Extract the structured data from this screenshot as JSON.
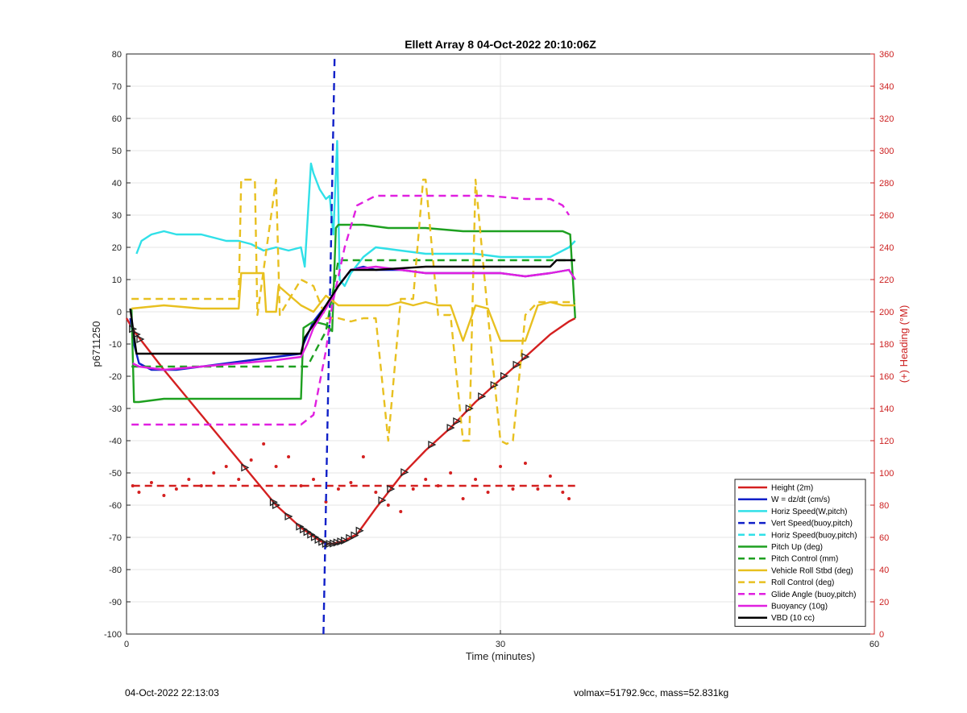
{
  "chart_data": {
    "type": "line",
    "title": "Ellett Array 8 04-Oct-2022 20:10:06Z",
    "xlabel": "Time (minutes)",
    "ylabel_left": "p6711250",
    "ylabel_right": "(+) Heading (°M)",
    "xlim": [
      0,
      60
    ],
    "ylim_left": [
      -100,
      80
    ],
    "ylim_right": [
      0,
      360
    ],
    "xticks": [
      "0",
      "30",
      "60"
    ],
    "yticks_left": [
      "80",
      "70",
      "60",
      "50",
      "40",
      "30",
      "20",
      "10",
      "0",
      "-10",
      "-20",
      "-30",
      "-40",
      "-50",
      "-60",
      "-70",
      "-80",
      "-90",
      "-100"
    ],
    "yticks_right": [
      "360",
      "340",
      "320",
      "300",
      "280",
      "260",
      "240",
      "220",
      "200",
      "180",
      "160",
      "140",
      "120",
      "100",
      "80",
      "60",
      "40",
      "20",
      "0"
    ],
    "grid": true,
    "legend_position": "bottom-right",
    "series": [
      {
        "name": "Height (2m)",
        "color": "#d42020",
        "style": "solid",
        "x": [
          0,
          0.6,
          3,
          6,
          9,
          12,
          14,
          15.5,
          16,
          16.5,
          17.5,
          18.5,
          20,
          21,
          22,
          24,
          26,
          28,
          30,
          32,
          34,
          35.5,
          36
        ],
        "y": [
          -2,
          -6,
          -18,
          -32,
          -46,
          -60,
          -67,
          -71,
          -72,
          -72,
          -71,
          -69,
          -61,
          -56,
          -51,
          -43,
          -36,
          -28,
          -21,
          -14,
          -7,
          -3,
          -2
        ]
      },
      {
        "name": "W = dz/dt (cm/s)",
        "color": "#1020c8",
        "style": "solid",
        "x": [
          0.3,
          0.6,
          1,
          2,
          4,
          6,
          8,
          10,
          12,
          14,
          14.2,
          15,
          16,
          17,
          18,
          19,
          20,
          22,
          24,
          26,
          28,
          30,
          32,
          34,
          35.5,
          36
        ],
        "y": [
          -2,
          -10,
          -16,
          -18,
          -18,
          -17,
          -16,
          -15,
          -14,
          -13,
          -10,
          -3,
          2,
          8,
          13,
          14,
          13,
          13,
          12,
          12,
          12,
          12,
          11,
          12,
          13,
          10
        ]
      },
      {
        "name": "Horiz Speed(W,pitch)",
        "color": "#30e0e8",
        "style": "solid",
        "x": [
          0.8,
          1.2,
          2,
          3,
          4,
          5,
          6,
          7,
          8,
          9,
          10,
          11,
          12,
          13,
          14,
          14.3,
          14.8,
          15,
          15.5,
          16,
          16.3,
          16.6,
          16.9,
          17.1,
          17.5,
          18,
          19,
          20,
          22,
          24,
          26,
          28,
          30,
          32,
          34,
          35.5,
          36
        ],
        "y": [
          18,
          22,
          24,
          25,
          24,
          24,
          24,
          23,
          22,
          22,
          21,
          19,
          20,
          19,
          20,
          14,
          46,
          43,
          38,
          35,
          36,
          24,
          53,
          10,
          8,
          12,
          17,
          20,
          19,
          18,
          18,
          18,
          17,
          17,
          17,
          20,
          22
        ]
      },
      {
        "name": "Vert Speed(buoy,pitch)",
        "color": "#1020c8",
        "style": "dashed",
        "x": [
          15.8,
          16.1,
          16.4,
          16.7
        ],
        "y": [
          -100,
          -40,
          20,
          80
        ]
      },
      {
        "name": "Horiz Speed(buoy,pitch)",
        "color": "#30e0e8",
        "style": "dashed",
        "x": [],
        "y": []
      },
      {
        "name": "Pitch Up (deg)",
        "color": "#1ea020",
        "style": "solid",
        "x": [
          0.4,
          0.6,
          1,
          3,
          6,
          9,
          12,
          14,
          14.2,
          15,
          16,
          16.5,
          16.8,
          17,
          19,
          21,
          24,
          27,
          30,
          33,
          35,
          35.6,
          36
        ],
        "y": [
          1,
          -28,
          -28,
          -27,
          -27,
          -27,
          -27,
          -27,
          -5,
          -3,
          -4,
          -6,
          26,
          27,
          27,
          26,
          26,
          25,
          25,
          25,
          25,
          24,
          -2
        ]
      },
      {
        "name": "Pitch Control (mm)",
        "color": "#1ea020",
        "style": "dashed",
        "x": [
          0.4,
          14,
          14.5,
          16,
          17,
          20,
          24,
          28,
          32,
          36
        ],
        "y": [
          -17,
          -17,
          -17,
          -6,
          16,
          16,
          16,
          16,
          16,
          16
        ]
      },
      {
        "name": "Vehicle Roll Stbd (deg)",
        "color": "#e8c020",
        "style": "solid",
        "x": [
          0.4,
          3,
          6,
          9,
          9.2,
          11,
          11.2,
          12,
          12.2,
          14,
          15,
          16,
          17,
          18,
          19,
          20,
          21,
          22,
          23,
          24,
          25,
          26,
          27,
          28,
          29,
          30,
          31,
          32,
          33,
          34,
          35,
          36
        ],
        "y": [
          1,
          2,
          1,
          1,
          12,
          12,
          0,
          0,
          8,
          2,
          0,
          5,
          2,
          2,
          2,
          2,
          2,
          3,
          2,
          3,
          2,
          2,
          -9,
          2,
          1,
          -9,
          -9,
          -9,
          2,
          3,
          2,
          2
        ]
      },
      {
        "name": "Roll Control (deg)",
        "color": "#e8c020",
        "style": "dashed",
        "x": [
          0.4,
          9,
          9.2,
          10.3,
          10.5,
          12,
          12.3,
          14,
          15,
          16,
          17,
          18,
          19,
          20,
          21,
          22,
          23,
          23.8,
          24,
          25,
          26,
          27,
          27.5,
          28,
          29,
          30,
          30.5,
          31,
          32,
          33,
          34,
          35,
          36
        ],
        "y": [
          4,
          4,
          41,
          41,
          -1,
          41,
          -1,
          10,
          8,
          -2,
          -2,
          -3,
          -2,
          -2,
          -40,
          4,
          4,
          41,
          41,
          -1,
          -1,
          -40,
          -40,
          41,
          -1,
          -40,
          -41,
          -40,
          -1,
          3,
          3,
          3,
          3
        ]
      },
      {
        "name": "Glide Angle (buoy,pitch)",
        "color": "#e020e0",
        "style": "dashed",
        "x": [
          0.4,
          2,
          5,
          8,
          11,
          13,
          14,
          15,
          16,
          16.5,
          17.5,
          18.5,
          20,
          23,
          26,
          29,
          32,
          34,
          35,
          35.5
        ],
        "y": [
          -35,
          -35,
          -35,
          -35,
          -35,
          -35,
          -35,
          -32,
          -12,
          2,
          20,
          33,
          36,
          36,
          36,
          36,
          35,
          35,
          33,
          30
        ]
      },
      {
        "name": "Buoyancy (10g)",
        "color": "#e020e0",
        "style": "solid",
        "x": [
          0.5,
          1,
          3,
          6,
          9,
          12,
          14,
          14.5,
          15,
          16,
          17,
          18,
          20,
          22,
          24,
          26,
          28,
          30,
          32,
          34,
          35.5,
          36
        ],
        "y": [
          -16,
          -17,
          -18,
          -17,
          -16,
          -15,
          -14,
          -10,
          -5,
          1,
          8,
          13,
          14,
          13,
          12,
          12,
          12,
          12,
          11,
          12,
          13,
          10
        ]
      },
      {
        "name": "VBD (10 cc)",
        "color": "#000000",
        "style": "solid",
        "x": [
          0.3,
          0.8,
          1,
          3,
          6,
          9,
          12,
          14,
          14.3,
          15,
          16,
          17,
          18,
          20,
          24,
          26,
          28,
          30,
          32,
          34,
          34.5,
          36
        ],
        "y": [
          1,
          -13,
          -13,
          -13,
          -13,
          -13,
          -13,
          -13,
          -8,
          -4,
          2,
          8,
          13,
          13,
          14,
          14,
          14,
          14,
          14,
          14,
          16,
          16
        ]
      }
    ],
    "heading_series": [
      {
        "name": "heading-points",
        "color": "#d42020",
        "style": "dotted",
        "axis": "right",
        "x": [
          0.5,
          1,
          2,
          3,
          4,
          5,
          6,
          7,
          8,
          9,
          10,
          11,
          12,
          13,
          14,
          15,
          16,
          17,
          18,
          19,
          20,
          21,
          22,
          23,
          24,
          25,
          26,
          27,
          28,
          29,
          30,
          31,
          32,
          33,
          34,
          35,
          35.5
        ],
        "y": [
          92,
          88,
          94,
          86,
          90,
          96,
          92,
          100,
          104,
          96,
          108,
          118,
          104,
          110,
          92,
          96,
          82,
          90,
          94,
          110,
          88,
          80,
          76,
          90,
          96,
          92,
          100,
          84,
          96,
          88,
          104,
          90,
          106,
          90,
          98,
          88,
          84
        ]
      },
      {
        "name": "heading-mean",
        "color": "#d42020",
        "style": "dashed",
        "axis": "right",
        "x": [
          0.5,
          36
        ],
        "y": [
          92,
          92
        ]
      }
    ],
    "height_markers_x": [
      0.5,
      0.8,
      1.1,
      9.5,
      11.8,
      12,
      13,
      13.9,
      14.2,
      14.5,
      14.8,
      15.1,
      15.4,
      15.7,
      16,
      16.3,
      16.6,
      16.9,
      17.2,
      17.5,
      17.9,
      18.3,
      18.7,
      20.5,
      21.2,
      22.3,
      24.5,
      26,
      26.5,
      27.5,
      28.5,
      29.5,
      30.3,
      31.3,
      32
    ]
  },
  "footer": {
    "left_text": "04-Oct-2022 22:13:03",
    "right_text": "volmax=51792.9cc, mass=52.831kg"
  }
}
